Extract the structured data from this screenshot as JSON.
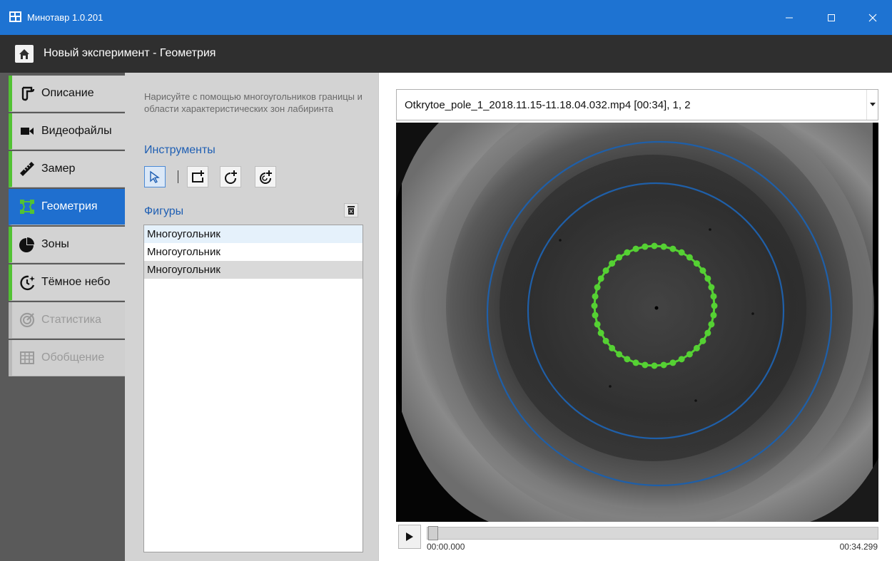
{
  "window": {
    "title": "Минотавр 1.0.201",
    "accent": "#1e73d2"
  },
  "header": {
    "breadcrumb": "Новый эксперимент - Геометрия"
  },
  "sidebar": {
    "items": [
      {
        "label": "Описание",
        "icon": "description-icon",
        "state": "done"
      },
      {
        "label": "Видеофайлы",
        "icon": "video-camera-icon",
        "state": "done"
      },
      {
        "label": "Замер",
        "icon": "ruler-icon",
        "state": "done"
      },
      {
        "label": "Геометрия",
        "icon": "geometry-icon",
        "state": "active"
      },
      {
        "label": "Зоны",
        "icon": "pie-chart-icon",
        "state": "done"
      },
      {
        "label": "Тёмное небо",
        "icon": "dark-sky-icon",
        "state": "done"
      },
      {
        "label": "Статистика",
        "icon": "target-icon",
        "state": "disabled"
      },
      {
        "label": "Обобщение",
        "icon": "table-icon",
        "state": "disabled"
      }
    ],
    "complete_color": "#52c234"
  },
  "tools": {
    "hint": "Нарисуйте с помощью многоугольников границы и области характеристических зон лабиринта",
    "instruments_title": "Инструменты",
    "buttons": [
      "pointer-icon",
      "add-rect-icon",
      "add-circle-icon",
      "add-ring-icon"
    ],
    "shapes_title": "Фигуры",
    "shapes": [
      "Многоугольник",
      "Многоугольник",
      "Многоугольник"
    ]
  },
  "viewer": {
    "file": "Otkrytoe_pole_1_2018.11.15-11.18.04.032.mp4 [00:34], 1, 2",
    "time_current": "00:00.000",
    "time_total": "00:34.299",
    "progress": 0,
    "circle_color": "#1f5fa8",
    "polygon_color": "#55d133"
  }
}
